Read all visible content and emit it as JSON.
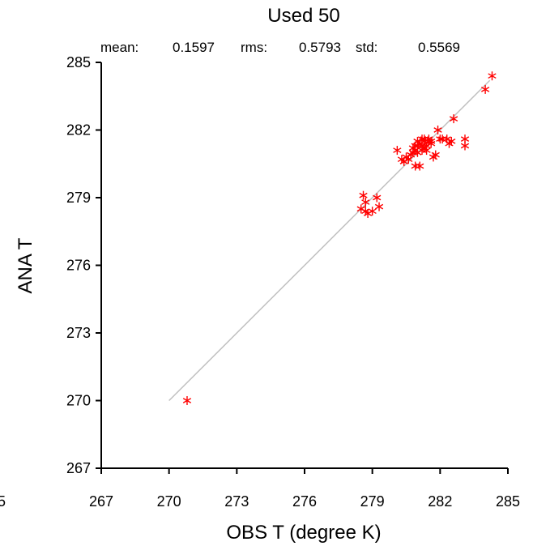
{
  "chart_data": {
    "type": "scatter",
    "title": "Used  50",
    "stats": {
      "mean_label": "mean:",
      "mean_value": "0.1597",
      "rms_label": "rms:",
      "rms_value": "0.5793",
      "std_label": "std:",
      "std_value": "0.5569"
    },
    "xlabel": "OBS T  (degree K)",
    "ylabel": "ANA T",
    "xlim": [
      267,
      285
    ],
    "ylim": [
      267,
      285
    ],
    "x_ticks": [
      {
        "v": 267,
        "label": "267"
      },
      {
        "v": 270,
        "label": "270"
      },
      {
        "v": 273,
        "label": "273"
      },
      {
        "v": 276,
        "label": "276"
      },
      {
        "v": 279,
        "label": "279"
      },
      {
        "v": 282,
        "label": "282"
      },
      {
        "v": 285,
        "label": "285"
      }
    ],
    "y_ticks": [
      {
        "v": 267,
        "label": "267"
      },
      {
        "v": 270,
        "label": "270"
      },
      {
        "v": 273,
        "label": "273"
      },
      {
        "v": 276,
        "label": "276"
      },
      {
        "v": 279,
        "label": "279"
      },
      {
        "v": 282,
        "label": "282"
      },
      {
        "v": 285,
        "label": "285"
      }
    ],
    "clipped_tick_label": "5",
    "reference_line": {
      "x": [
        270,
        284.2
      ],
      "y": [
        270,
        284.2
      ],
      "color": "#c0c0c0"
    },
    "marker_color": "#ff0000",
    "marker": "asterisk",
    "points": [
      [
        270.8,
        270.0
      ],
      [
        278.5,
        278.5
      ],
      [
        278.6,
        279.1
      ],
      [
        278.7,
        278.8
      ],
      [
        278.8,
        278.3
      ],
      [
        279.0,
        278.4
      ],
      [
        279.2,
        279.0
      ],
      [
        279.3,
        278.6
      ],
      [
        278.7,
        278.4
      ],
      [
        280.1,
        281.1
      ],
      [
        280.3,
        280.7
      ],
      [
        280.5,
        280.8
      ],
      [
        280.7,
        280.9
      ],
      [
        280.8,
        281.2
      ],
      [
        280.9,
        280.4
      ],
      [
        281.0,
        281.3
      ],
      [
        281.1,
        280.4
      ],
      [
        281.0,
        281.0
      ],
      [
        281.2,
        281.6
      ],
      [
        281.3,
        281.5
      ],
      [
        281.4,
        281.1
      ],
      [
        281.5,
        281.6
      ],
      [
        281.6,
        281.5
      ],
      [
        281.7,
        280.8
      ],
      [
        281.8,
        280.9
      ],
      [
        281.9,
        282.0
      ],
      [
        282.0,
        281.6
      ],
      [
        282.1,
        281.6
      ],
      [
        282.3,
        281.6
      ],
      [
        282.4,
        281.4
      ],
      [
        282.5,
        281.5
      ],
      [
        282.6,
        282.5
      ],
      [
        283.1,
        281.3
      ],
      [
        283.1,
        281.6
      ],
      [
        284.0,
        283.8
      ],
      [
        284.3,
        284.4
      ],
      [
        280.6,
        280.7
      ],
      [
        280.8,
        281.0
      ],
      [
        281.1,
        281.4
      ],
      [
        281.3,
        281.2
      ],
      [
        281.5,
        281.5
      ],
      [
        281.4,
        281.3
      ],
      [
        281.2,
        281.1
      ],
      [
        280.9,
        281.3
      ],
      [
        281.0,
        281.5
      ],
      [
        280.9,
        281.1
      ],
      [
        281.2,
        281.3
      ],
      [
        281.3,
        281.6
      ],
      [
        280.4,
        280.6
      ],
      [
        281.6,
        281.4
      ]
    ]
  }
}
